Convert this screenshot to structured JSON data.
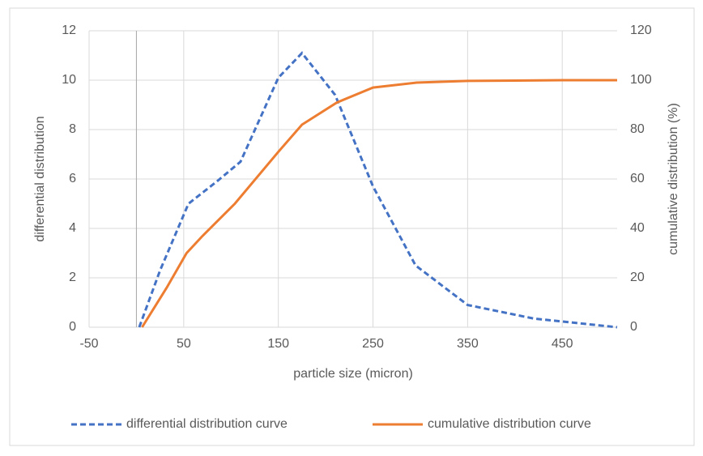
{
  "chart_data": {
    "type": "line",
    "x_label": "particle size (micron)",
    "y_label": "differential distribution",
    "y2_label": "cumulative distribution (%)",
    "xlim": [
      -50,
      508
    ],
    "xticks": [
      -50,
      50,
      150,
      250,
      350,
      450
    ],
    "ylim": [
      0,
      12
    ],
    "yticks": [
      0,
      2,
      4,
      6,
      8,
      10,
      12
    ],
    "y2lim": [
      0,
      120
    ],
    "y2ticks": [
      0,
      20,
      40,
      60,
      80,
      100,
      120
    ],
    "grid": true,
    "legend": "bottom",
    "series": [
      {
        "name": "differential distribution curve",
        "color": "#4472c4",
        "dashed": true,
        "x": [
          3,
          25,
          55,
          85,
          110,
          150,
          175,
          210,
          250,
          295,
          350,
          420,
          508
        ],
        "values": [
          0,
          2.3,
          5.0,
          5.9,
          6.7,
          10.1,
          11.1,
          9.4,
          5.7,
          2.5,
          0.9,
          0.35,
          0
        ]
      },
      {
        "name": "cumulative distribution curve",
        "color": "#ed7d31",
        "dashed": false,
        "axis": "y2",
        "x": [
          6,
          32,
          53,
          70,
          104,
          150,
          175,
          212,
          250,
          296,
          350,
          450,
          508
        ],
        "values": [
          0,
          16,
          30,
          37,
          50,
          71,
          82,
          91,
          97,
          99,
          99.7,
          100,
          100
        ]
      }
    ]
  }
}
